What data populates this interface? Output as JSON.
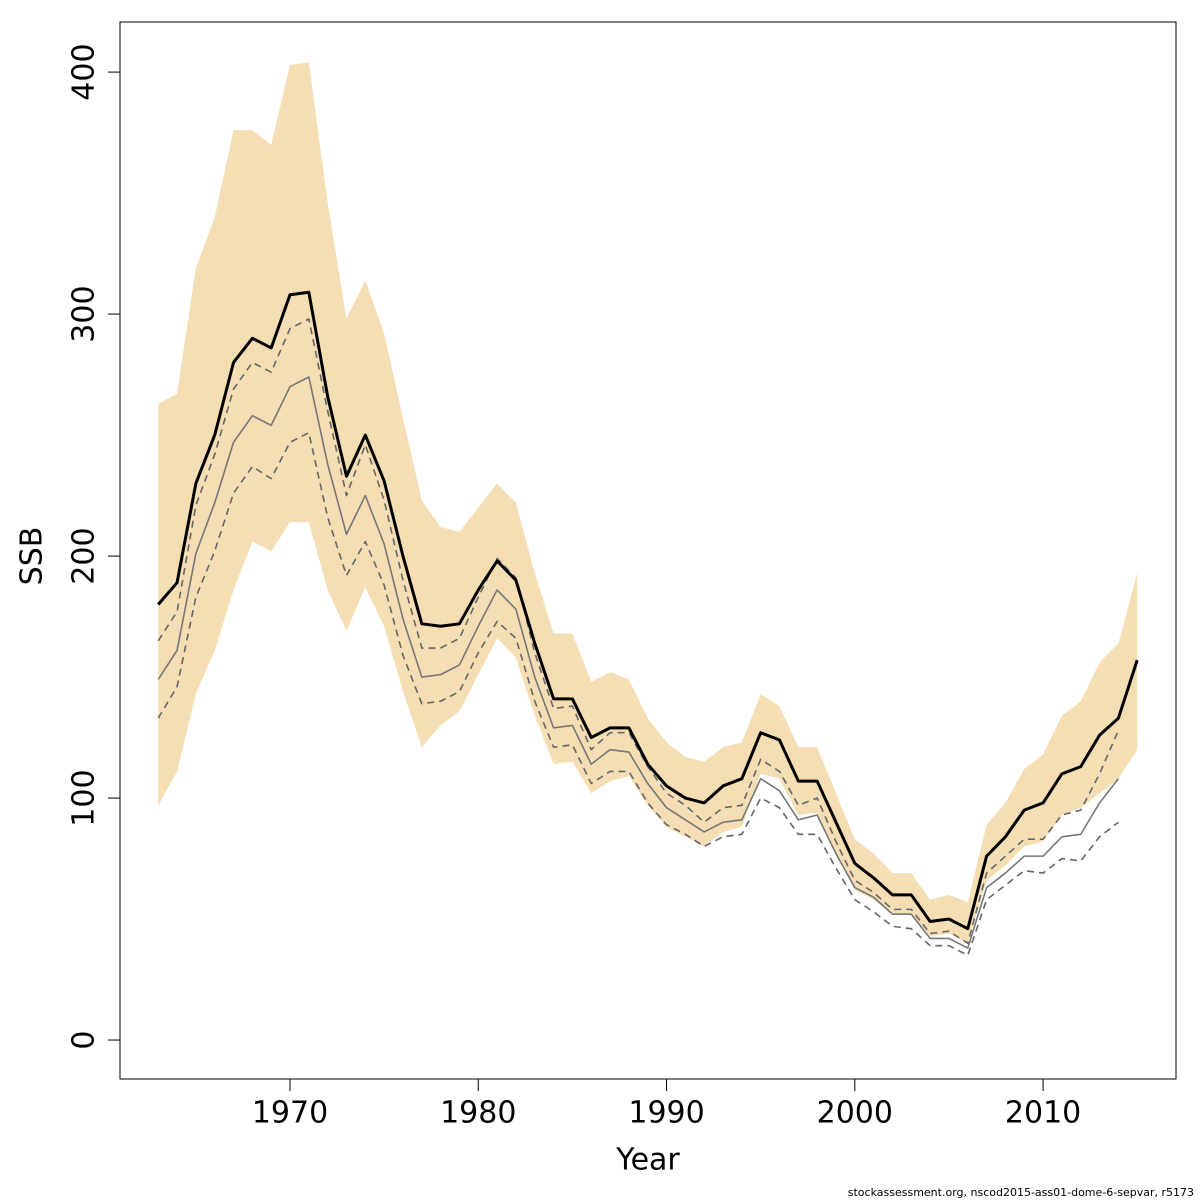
{
  "chart_data": {
    "type": "line",
    "x_label": "Year",
    "y_label": "SSB",
    "note": "stockassessment.org, nscod2015-ass01-dome-6-sepvar, r5173",
    "xlim": [
      1960.97,
      2017.06
    ],
    "ylim": [
      -16.1,
      420.7
    ],
    "xticks": [
      1970,
      1980,
      1990,
      2000,
      2010
    ],
    "yticks": [
      0,
      100,
      200,
      300,
      400
    ],
    "x": [
      1963,
      1964,
      1965,
      1966,
      1967,
      1968,
      1969,
      1970,
      1971,
      1972,
      1973,
      1974,
      1975,
      1976,
      1977,
      1978,
      1979,
      1980,
      1981,
      1982,
      1983,
      1984,
      1985,
      1986,
      1987,
      1988,
      1989,
      1990,
      1991,
      1992,
      1993,
      1994,
      1995,
      1996,
      1997,
      1998,
      1999,
      2000,
      2001,
      2002,
      2003,
      2004,
      2005,
      2006,
      2007,
      2008,
      2009,
      2010,
      2011,
      2012,
      2013,
      2014,
      2015
    ],
    "band": {
      "color": "#f5deb3",
      "upper": [
        263,
        267,
        319,
        340,
        376,
        376,
        370,
        403,
        404,
        346,
        298,
        314,
        292,
        257,
        223,
        212,
        210,
        220,
        230,
        222,
        193,
        168,
        168,
        148,
        152,
        149,
        133,
        123,
        117,
        115,
        121,
        123,
        143,
        138,
        121,
        121,
        102,
        83,
        77,
        69,
        69,
        58,
        60,
        57,
        89,
        98,
        112,
        118,
        134,
        140,
        156,
        164,
        193
      ],
      "lower": [
        97,
        111,
        143,
        161,
        186,
        206,
        202,
        214,
        214,
        186,
        169,
        187,
        171,
        144,
        121,
        130,
        136,
        151,
        166,
        158,
        134,
        114,
        115,
        102,
        107,
        109,
        97,
        88,
        84,
        80,
        86,
        88,
        110,
        108,
        93,
        94,
        77,
        62,
        58,
        52,
        52,
        43,
        44,
        40,
        66,
        72,
        80,
        82,
        93,
        96,
        102,
        108,
        120
      ]
    },
    "series": [
      {
        "color": "#666666",
        "style": "dashed",
        "values": [
          165,
          177,
          221,
          242,
          269,
          280,
          276,
          294,
          298,
          260,
          225,
          246,
          223,
          190,
          162,
          162,
          166,
          183,
          199,
          191,
          160,
          137,
          138,
          120,
          127,
          127,
          113,
          102,
          97,
          90,
          96,
          97,
          116,
          111,
          97,
          100,
          82,
          66,
          61,
          54,
          54,
          44,
          45,
          40,
          69,
          76,
          83,
          83,
          93,
          95,
          110,
          128,
          null
        ]
      },
      {
        "color": "#666666",
        "style": "dashed",
        "values": [
          133,
          146,
          183,
          202,
          226,
          237,
          232,
          247,
          251,
          216,
          192,
          206,
          188,
          159,
          139,
          140,
          144,
          160,
          173,
          166,
          140,
          121,
          122,
          106,
          111,
          111,
          98,
          89,
          85,
          80,
          84,
          85,
          100,
          96,
          85,
          85,
          71,
          58,
          53,
          47,
          46,
          39,
          39,
          35,
          58,
          64,
          70,
          69,
          75,
          74,
          84,
          90,
          null
        ]
      },
      {
        "color": "#777777",
        "style": "solid",
        "values": [
          149,
          161,
          201,
          222,
          247,
          258,
          254,
          270,
          274,
          238,
          209,
          225,
          205,
          174,
          150,
          151,
          155,
          171,
          186,
          178,
          150,
          129,
          130,
          114,
          120,
          119,
          106,
          96,
          91,
          86,
          90,
          91,
          108,
          103,
          91,
          93,
          77,
          63,
          59,
          52,
          52,
          42,
          42,
          38,
          63,
          69,
          76,
          76,
          84,
          85,
          98,
          108,
          null
        ]
      },
      {
        "color": "#000000",
        "style": "bold",
        "values": [
          180,
          189,
          230,
          250,
          280,
          290,
          286,
          308,
          309,
          266,
          233,
          250,
          231,
          200,
          172,
          171,
          172,
          186,
          198,
          190,
          164,
          141,
          141,
          125,
          129,
          129,
          114,
          105,
          100,
          98,
          105,
          108,
          127,
          124,
          107,
          107,
          90,
          73,
          67,
          60,
          60,
          49,
          50,
          46,
          76,
          84,
          95,
          98,
          110,
          113,
          126,
          133,
          157
        ]
      }
    ]
  }
}
